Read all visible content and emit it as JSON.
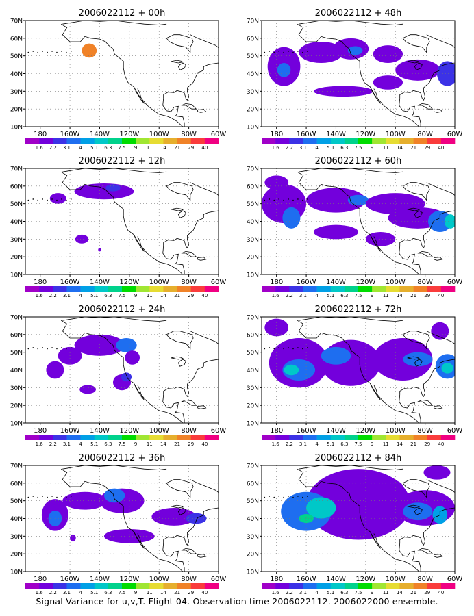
{
  "caption": "Signal Variance for u,v,T. Flight 04. Observation time 2006022112. 2006022000 ensemble.",
  "colorbar": {
    "labels": [
      "1.6",
      "2.2",
      "3.1",
      "4",
      "5.1",
      "6.3",
      "7.5",
      "9",
      "11",
      "14",
      "21",
      "29",
      "40"
    ],
    "colors": [
      "#a000c8",
      "#7300dc",
      "#3c32e6",
      "#1e6ef0",
      "#00a0e6",
      "#00c8c8",
      "#00d28c",
      "#00dc00",
      "#a0e632",
      "#e6dc32",
      "#e6af2d",
      "#f08228",
      "#fa3c3c",
      "#f00082"
    ]
  },
  "chart_data": [
    {
      "type": "heatmap",
      "title": "2006022112 + 00h",
      "x_ticks": [
        "180",
        "160W",
        "140W",
        "120W",
        "100W",
        "80W",
        "60W"
      ],
      "y_ticks": [
        "10N",
        "20N",
        "30N",
        "40N",
        "50N",
        "60N",
        "70N"
      ],
      "xlim": [
        -190,
        -60
      ],
      "ylim": [
        10,
        70
      ],
      "grid": true,
      "units": "longitude/latitude",
      "blobs": [
        {
          "lon": -147,
          "lat": 53,
          "w": 10,
          "h": 8,
          "level": 11
        }
      ]
    },
    {
      "type": "heatmap",
      "title": "2006022112 + 12h",
      "x_ticks": [
        "180",
        "160W",
        "140W",
        "120W",
        "100W",
        "80W",
        "60W"
      ],
      "y_ticks": [
        "10N",
        "20N",
        "30N",
        "40N",
        "50N",
        "60N",
        "70N"
      ],
      "xlim": [
        -190,
        -60
      ],
      "ylim": [
        10,
        70
      ],
      "grid": true,
      "blobs": [
        {
          "lon": -137,
          "lat": 57,
          "w": 40,
          "h": 9,
          "level": 1
        },
        {
          "lon": -131,
          "lat": 59,
          "w": 10,
          "h": 4,
          "level": 2
        },
        {
          "lon": -168,
          "lat": 53,
          "w": 11,
          "h": 6,
          "level": 1
        },
        {
          "lon": -152,
          "lat": 30,
          "w": 9,
          "h": 5,
          "level": 1
        },
        {
          "lon": -140,
          "lat": 24,
          "w": 2,
          "h": 2,
          "level": 1
        }
      ]
    },
    {
      "type": "heatmap",
      "title": "2006022112 + 24h",
      "x_ticks": [
        "180",
        "160W",
        "140W",
        "120W",
        "100W",
        "80W",
        "60W"
      ],
      "y_ticks": [
        "10N",
        "20N",
        "30N",
        "40N",
        "50N",
        "60N",
        "70N"
      ],
      "xlim": [
        -190,
        -60
      ],
      "ylim": [
        10,
        70
      ],
      "grid": true,
      "blobs": [
        {
          "lon": -170,
          "lat": 40,
          "w": 12,
          "h": 10,
          "level": 1
        },
        {
          "lon": -160,
          "lat": 48,
          "w": 16,
          "h": 10,
          "level": 1
        },
        {
          "lon": -140,
          "lat": 54,
          "w": 34,
          "h": 12,
          "level": 1
        },
        {
          "lon": -122,
          "lat": 54,
          "w": 14,
          "h": 8,
          "level": 3
        },
        {
          "lon": -118,
          "lat": 47,
          "w": 10,
          "h": 8,
          "level": 1
        },
        {
          "lon": -125,
          "lat": 33,
          "w": 12,
          "h": 9,
          "level": 1
        },
        {
          "lon": -122,
          "lat": 36,
          "w": 7,
          "h": 5,
          "level": 2
        },
        {
          "lon": -148,
          "lat": 29,
          "w": 11,
          "h": 5,
          "level": 1
        }
      ]
    },
    {
      "type": "heatmap",
      "title": "2006022112 + 36h",
      "x_ticks": [
        "180",
        "160W",
        "140W",
        "120W",
        "100W",
        "80W",
        "60W"
      ],
      "y_ticks": [
        "10N",
        "20N",
        "30N",
        "40N",
        "50N",
        "60N",
        "70N"
      ],
      "xlim": [
        -190,
        -60
      ],
      "ylim": [
        10,
        70
      ],
      "grid": true,
      "blobs": [
        {
          "lon": -170,
          "lat": 42,
          "w": 18,
          "h": 18,
          "level": 1
        },
        {
          "lon": -170,
          "lat": 40,
          "w": 9,
          "h": 9,
          "level": 3
        },
        {
          "lon": -150,
          "lat": 50,
          "w": 30,
          "h": 10,
          "level": 1
        },
        {
          "lon": -125,
          "lat": 50,
          "w": 30,
          "h": 14,
          "level": 1
        },
        {
          "lon": -130,
          "lat": 53,
          "w": 14,
          "h": 8,
          "level": 3
        },
        {
          "lon": -90,
          "lat": 41,
          "w": 30,
          "h": 10,
          "level": 1
        },
        {
          "lon": -75,
          "lat": 40,
          "w": 14,
          "h": 6,
          "level": 2
        },
        {
          "lon": -120,
          "lat": 30,
          "w": 34,
          "h": 8,
          "level": 1
        },
        {
          "lon": -158,
          "lat": 29,
          "w": 4,
          "h": 4,
          "level": 1
        }
      ]
    },
    {
      "type": "heatmap",
      "title": "2006022112 + 48h",
      "x_ticks": [
        "180",
        "160W",
        "140W",
        "120W",
        "100W",
        "80W",
        "60W"
      ],
      "y_ticks": [
        "10N",
        "20N",
        "30N",
        "40N",
        "50N",
        "60N",
        "70N"
      ],
      "xlim": [
        -190,
        -60
      ],
      "ylim": [
        10,
        70
      ],
      "grid": true,
      "blobs": [
        {
          "lon": -175,
          "lat": 44,
          "w": 22,
          "h": 22,
          "level": 1
        },
        {
          "lon": -175,
          "lat": 42,
          "w": 9,
          "h": 8,
          "level": 3
        },
        {
          "lon": -150,
          "lat": 52,
          "w": 30,
          "h": 12,
          "level": 1
        },
        {
          "lon": -130,
          "lat": 54,
          "w": 24,
          "h": 12,
          "level": 1
        },
        {
          "lon": -127,
          "lat": 53,
          "w": 10,
          "h": 5,
          "level": 3
        },
        {
          "lon": -105,
          "lat": 51,
          "w": 20,
          "h": 10,
          "level": 1
        },
        {
          "lon": -85,
          "lat": 42,
          "w": 30,
          "h": 12,
          "level": 1
        },
        {
          "lon": -65,
          "lat": 40,
          "w": 14,
          "h": 14,
          "level": 2
        },
        {
          "lon": -135,
          "lat": 30,
          "w": 40,
          "h": 6,
          "level": 1
        },
        {
          "lon": -105,
          "lat": 35,
          "w": 20,
          "h": 8,
          "level": 1
        }
      ]
    },
    {
      "type": "heatmap",
      "title": "2006022112 + 60h",
      "x_ticks": [
        "180",
        "160W",
        "140W",
        "120W",
        "100W",
        "80W",
        "60W"
      ],
      "y_ticks": [
        "10N",
        "20N",
        "30N",
        "40N",
        "50N",
        "60N",
        "70N"
      ],
      "xlim": [
        -190,
        -60
      ],
      "ylim": [
        10,
        70
      ],
      "grid": true,
      "blobs": [
        {
          "lon": -175,
          "lat": 50,
          "w": 30,
          "h": 22,
          "level": 1
        },
        {
          "lon": -170,
          "lat": 42,
          "w": 12,
          "h": 12,
          "level": 3
        },
        {
          "lon": -140,
          "lat": 52,
          "w": 40,
          "h": 14,
          "level": 1
        },
        {
          "lon": -125,
          "lat": 52,
          "w": 14,
          "h": 6,
          "level": 3
        },
        {
          "lon": -100,
          "lat": 50,
          "w": 40,
          "h": 12,
          "level": 1
        },
        {
          "lon": -85,
          "lat": 42,
          "w": 40,
          "h": 12,
          "level": 1
        },
        {
          "lon": -70,
          "lat": 40,
          "w": 16,
          "h": 12,
          "level": 3
        },
        {
          "lon": -63,
          "lat": 40,
          "w": 8,
          "h": 8,
          "level": 5
        },
        {
          "lon": -140,
          "lat": 34,
          "w": 30,
          "h": 8,
          "level": 1
        },
        {
          "lon": -110,
          "lat": 30,
          "w": 20,
          "h": 8,
          "level": 1
        },
        {
          "lon": -180,
          "lat": 62,
          "w": 16,
          "h": 8,
          "level": 1
        }
      ]
    },
    {
      "type": "heatmap",
      "title": "2006022112 + 72h",
      "x_ticks": [
        "180",
        "160W",
        "140W",
        "120W",
        "100W",
        "80W",
        "60W"
      ],
      "y_ticks": [
        "10N",
        "20N",
        "30N",
        "40N",
        "50N",
        "60N",
        "70N"
      ],
      "xlim": [
        -190,
        -60
      ],
      "ylim": [
        10,
        70
      ],
      "grid": true,
      "blobs": [
        {
          "lon": -165,
          "lat": 44,
          "w": 40,
          "h": 28,
          "level": 1
        },
        {
          "lon": -165,
          "lat": 40,
          "w": 22,
          "h": 12,
          "level": 3
        },
        {
          "lon": -170,
          "lat": 40,
          "w": 10,
          "h": 6,
          "level": 5
        },
        {
          "lon": -130,
          "lat": 44,
          "w": 40,
          "h": 26,
          "level": 1
        },
        {
          "lon": -140,
          "lat": 48,
          "w": 20,
          "h": 10,
          "level": 3
        },
        {
          "lon": -95,
          "lat": 46,
          "w": 40,
          "h": 24,
          "level": 1
        },
        {
          "lon": -85,
          "lat": 46,
          "w": 20,
          "h": 8,
          "level": 3
        },
        {
          "lon": -65,
          "lat": 42,
          "w": 16,
          "h": 14,
          "level": 3
        },
        {
          "lon": -65,
          "lat": 41,
          "w": 8,
          "h": 6,
          "level": 5
        },
        {
          "lon": -180,
          "lat": 64,
          "w": 16,
          "h": 10,
          "level": 1
        },
        {
          "lon": -70,
          "lat": 62,
          "w": 12,
          "h": 10,
          "level": 1
        }
      ]
    },
    {
      "type": "heatmap",
      "title": "2006022112 + 84h",
      "x_ticks": [
        "180",
        "160W",
        "140W",
        "120W",
        "100W",
        "80W",
        "60W"
      ],
      "y_ticks": [
        "10N",
        "20N",
        "30N",
        "40N",
        "50N",
        "60N",
        "70N"
      ],
      "xlim": [
        -190,
        -60
      ],
      "ylim": [
        10,
        70
      ],
      "grid": true,
      "blobs": [
        {
          "lon": -125,
          "lat": 48,
          "w": 70,
          "h": 40,
          "level": 1
        },
        {
          "lon": -160,
          "lat": 44,
          "w": 34,
          "h": 22,
          "level": 3
        },
        {
          "lon": -150,
          "lat": 46,
          "w": 20,
          "h": 12,
          "level": 5
        },
        {
          "lon": -160,
          "lat": 40,
          "w": 10,
          "h": 5,
          "level": 6
        },
        {
          "lon": -80,
          "lat": 46,
          "w": 40,
          "h": 20,
          "level": 1
        },
        {
          "lon": -85,
          "lat": 44,
          "w": 20,
          "h": 10,
          "level": 3
        },
        {
          "lon": -70,
          "lat": 42,
          "w": 10,
          "h": 10,
          "level": 4
        },
        {
          "lon": -110,
          "lat": 58,
          "w": 30,
          "h": 10,
          "level": 1
        },
        {
          "lon": -72,
          "lat": 66,
          "w": 18,
          "h": 8,
          "level": 1
        }
      ]
    }
  ]
}
